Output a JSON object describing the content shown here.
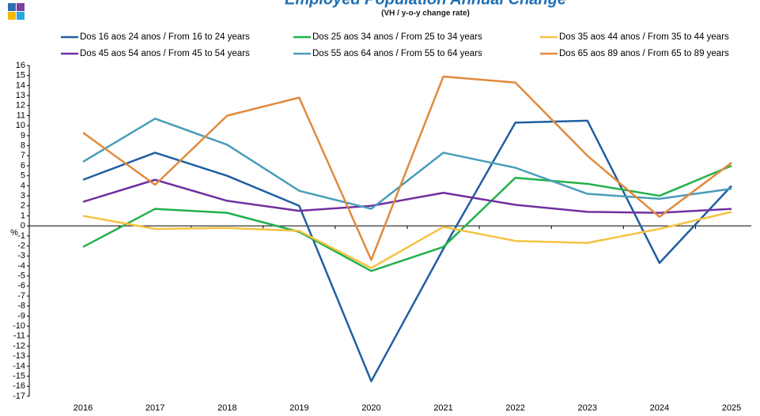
{
  "chart_data": {
    "type": "line",
    "title": "Employed Population Annual Change",
    "subtitle": "(VH / y-o-y change rate)",
    "y_label": "%",
    "categories": [
      "2016",
      "2017",
      "2018",
      "2019",
      "2020",
      "2021",
      "2022",
      "2023",
      "2024",
      "2025"
    ],
    "ylim": [
      -17,
      16
    ],
    "yticks": [
      -17,
      -16,
      -15,
      -14,
      -13,
      -12,
      -11,
      -10,
      -9,
      -8,
      -7,
      -6,
      -5,
      -4,
      -3,
      -2,
      -1,
      0,
      1,
      2,
      3,
      4,
      5,
      6,
      7,
      8,
      9,
      10,
      11,
      12,
      13,
      14,
      15,
      16
    ],
    "series": [
      {
        "name": "Dos 16 aos 24 anos / From 16 to 24 years",
        "color": "#1f5fa0",
        "values": [
          4.6,
          7.3,
          5.0,
          2.0,
          -15.5,
          -2.3,
          10.3,
          10.5,
          -3.7,
          4.0
        ]
      },
      {
        "name": "Dos 25 aos 34 anos / From 25 to 34 years",
        "color": "#22b14c",
        "values": [
          -2.1,
          1.7,
          1.3,
          -0.6,
          -4.5,
          -2.1,
          4.8,
          4.2,
          3.0,
          6.0
        ]
      },
      {
        "name": "Dos 35 aos 44 anos / From 35 to 44 years",
        "color": "#f5c242",
        "values": [
          1.0,
          -0.3,
          -0.2,
          -0.5,
          -4.2,
          -0.1,
          -1.5,
          -1.7,
          -0.3,
          1.4
        ]
      },
      {
        "name": "Dos 45 aos 54 anos / From 45 to 54 years",
        "color": "#7030a0",
        "values": [
          2.4,
          4.6,
          2.5,
          1.5,
          2.0,
          3.3,
          2.1,
          1.4,
          1.3,
          1.7
        ]
      },
      {
        "name": "Dos 55 aos 64 anos / From 55 to 64 years",
        "color": "#4a9dbb",
        "values": [
          6.4,
          10.7,
          8.1,
          3.5,
          1.7,
          7.3,
          5.8,
          3.2,
          2.7,
          3.7
        ]
      },
      {
        "name": "Dos 65 aos 89 anos / From 65 to 89 years",
        "color": "#e08a3c",
        "values": [
          9.3,
          4.1,
          11.0,
          12.8,
          -3.4,
          14.9,
          14.3,
          7.0,
          0.9,
          6.3
        ]
      }
    ]
  }
}
